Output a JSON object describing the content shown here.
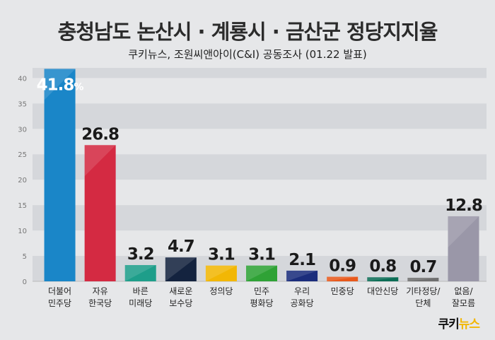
{
  "chart_data": {
    "type": "bar",
    "title": "충청남도 논산시 · 계룡시 · 금산군 정당지지율",
    "subtitle": "쿠키뉴스, 조원씨앤아이(C&I) 공동조사 (01.22 발표)",
    "categories": [
      [
        "더불어",
        "민주당"
      ],
      [
        "자유",
        "한국당"
      ],
      [
        "바른",
        "미래당"
      ],
      [
        "새로운",
        "보수당"
      ],
      [
        "정의당"
      ],
      [
        "민주",
        "평화당"
      ],
      [
        "우리",
        "공화당"
      ],
      [
        "민중당"
      ],
      [
        "대안신당"
      ],
      [
        "기타정당/",
        "단체"
      ],
      [
        "없음/",
        "잘모름"
      ]
    ],
    "values": [
      41.8,
      26.8,
      3.2,
      4.7,
      3.1,
      3.1,
      2.1,
      0.9,
      0.8,
      0.7,
      12.8
    ],
    "value_labels": [
      "41.8",
      "26.8",
      "3.2",
      "4.7",
      "3.1",
      "3.1",
      "2.1",
      "0.9",
      "0.8",
      "0.7",
      "12.8"
    ],
    "first_label_suffix": "%",
    "colors": [
      "#1a86c8",
      "#d42a42",
      "#1e9e8a",
      "#14233f",
      "#f2b705",
      "#2fa236",
      "#1b2d7c",
      "#e8591c",
      "#0b6d55",
      "#6f6f6f",
      "#9a97a8"
    ],
    "ylim": [
      0,
      42
    ],
    "yticks": [
      "0",
      "5",
      "10",
      "15",
      "20",
      "25",
      "30",
      "35",
      "40"
    ],
    "grid": true
  },
  "logo": {
    "left": "쿠키",
    "right": "뉴스"
  }
}
